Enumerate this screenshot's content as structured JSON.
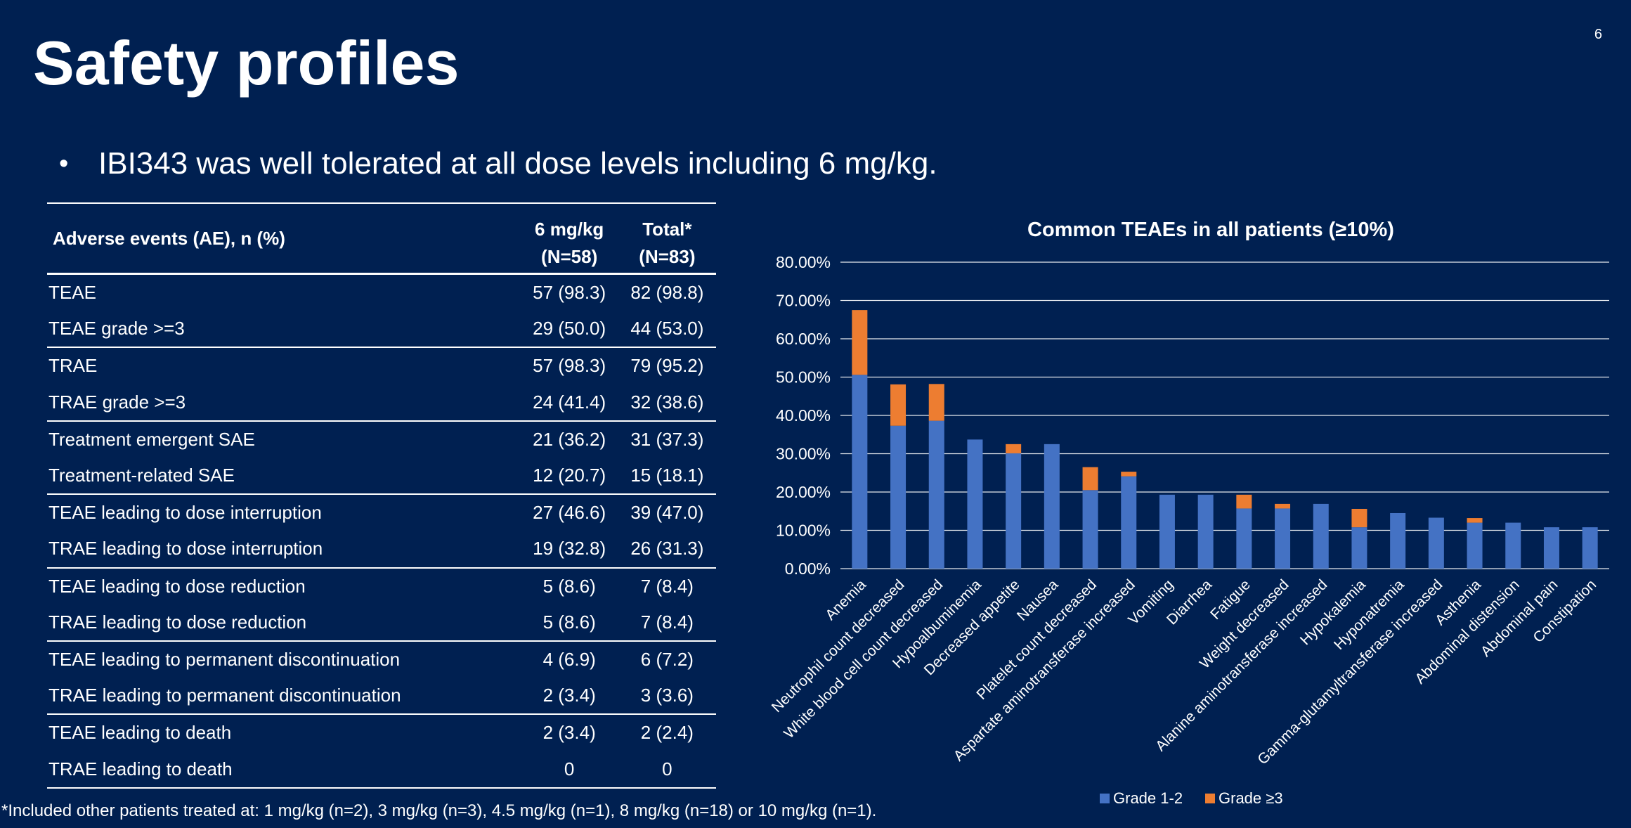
{
  "page_number": "6",
  "title": "Safety profiles",
  "bullet": "IBI343 was well tolerated at all dose levels including 6 mg/kg.",
  "bullet_marker": "•",
  "table": {
    "header": {
      "col0": "Adverse events (AE), n (%)",
      "col1_line1": "6 mg/kg",
      "col1_line2": "(N=58)",
      "col2_line1": "Total*",
      "col2_line2": "(N=83)"
    },
    "rows": [
      {
        "label": "TEAE",
        "dose6": "57 (98.3)",
        "total": "82 (98.8)"
      },
      {
        "label": "TEAE grade >=3",
        "dose6": "29 (50.0)",
        "total": "44 (53.0)"
      },
      {
        "label": "TRAE",
        "dose6": "57 (98.3)",
        "total": "79 (95.2)"
      },
      {
        "label": "TRAE grade >=3",
        "dose6": "24 (41.4)",
        "total": "32 (38.6)"
      },
      {
        "label": "Treatment emergent SAE",
        "dose6": "21 (36.2)",
        "total": "31 (37.3)"
      },
      {
        "label": "Treatment-related SAE",
        "dose6": "12 (20.7)",
        "total": "15 (18.1)"
      },
      {
        "label": "TEAE leading to dose interruption",
        "dose6": "27 (46.6)",
        "total": "39 (47.0)"
      },
      {
        "label": "TRAE leading to dose interruption",
        "dose6": "19 (32.8)",
        "total": "26 (31.3)"
      },
      {
        "label": "TEAE leading to dose reduction",
        "dose6": "5 (8.6)",
        "total": "7 (8.4)"
      },
      {
        "label": "TRAE leading to dose reduction",
        "dose6": "5 (8.6)",
        "total": "7 (8.4)"
      },
      {
        "label": "TEAE leading to permanent discontinuation",
        "dose6": "4 (6.9)",
        "total": "6 (7.2)"
      },
      {
        "label": "TRAE leading to permanent discontinuation",
        "dose6": "2 (3.4)",
        "total": "3 (3.6)"
      },
      {
        "label": "TEAE leading to death",
        "dose6": "2 (3.4)",
        "total": "2 (2.4)"
      },
      {
        "label": "TRAE leading to death",
        "dose6": "0",
        "total": "0"
      }
    ]
  },
  "footnote": "*Included other patients treated at: 1 mg/kg (n=2), 3 mg/kg (n=3), 4.5 mg/kg (n=1), 8 mg/kg (n=18) or 10 mg/kg (n=1).",
  "colors": {
    "background": "#002051",
    "text": "#ffffff",
    "grade12": "#4472C4",
    "grade3": "#ED7D31"
  },
  "chart_data": {
    "type": "bar",
    "stacked": true,
    "title": "Common TEAEs in all patients (≥10%)",
    "xlabel": "",
    "ylabel": "",
    "ylim": [
      0,
      80
    ],
    "yticks": [
      "0.00%",
      "10.00%",
      "20.00%",
      "30.00%",
      "40.00%",
      "50.00%",
      "60.00%",
      "70.00%",
      "80.00%"
    ],
    "grid": true,
    "legend_position": "bottom",
    "categories": [
      "Anemia",
      "Neutrophil count decreased",
      "White blood cell count decreased",
      "Hypoalbuminemia",
      "Decreased appetite",
      "Nausea",
      "Platelet count decreased",
      "Aspartate aminotransferase increased",
      "Vomiting",
      "Diarrhea",
      "Fatigue",
      "Weight decreased",
      "Alanine aminotransferase increased",
      "Hypokalemia",
      "Hyponatremia",
      "Gamma-glutamyltransferase increased",
      "Asthenia",
      "Abdominal distension",
      "Abdominal pain",
      "Constipation"
    ],
    "series": [
      {
        "name": "Grade 1-2",
        "color": "#4472C4",
        "values": [
          50.6,
          37.3,
          38.6,
          33.7,
          30.1,
          32.5,
          20.5,
          24.1,
          19.3,
          19.3,
          15.7,
          15.7,
          16.9,
          10.8,
          14.5,
          13.3,
          12.0,
          12.0,
          10.8,
          10.8
        ]
      },
      {
        "name": "Grade ≥3",
        "color": "#ED7D31",
        "values": [
          16.9,
          10.8,
          9.6,
          0,
          2.4,
          0,
          6.0,
          1.2,
          0,
          0,
          3.6,
          1.2,
          0,
          4.8,
          0,
          0,
          1.2,
          0,
          0,
          0
        ]
      }
    ]
  }
}
